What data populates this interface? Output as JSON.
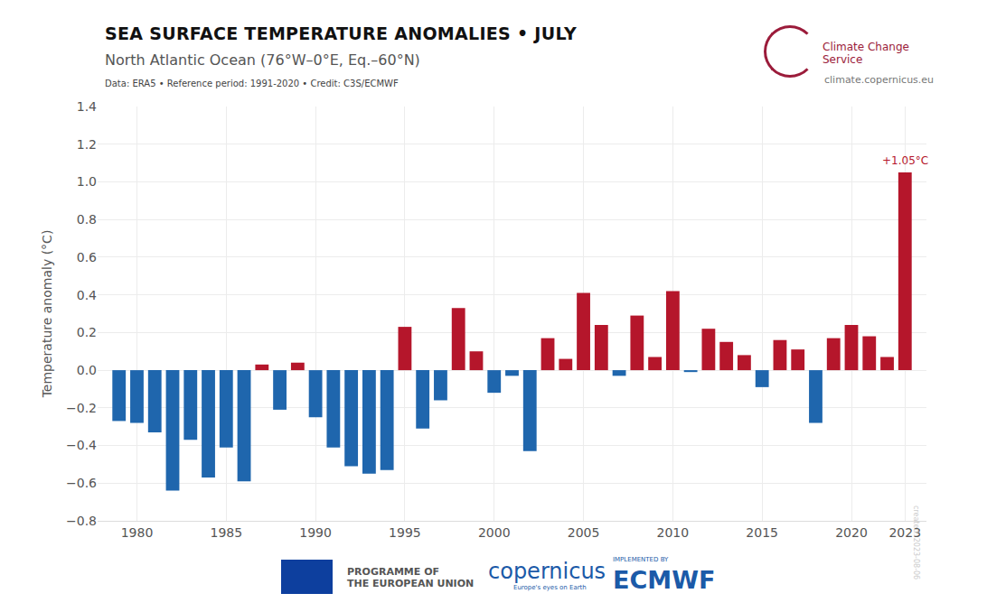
{
  "chart_data": {
    "type": "bar",
    "title": "SEA SURFACE TEMPERATURE ANOMALIES • JULY",
    "subtitle": "North Atlantic Ocean (76°W–0°E, Eq.–60°N)",
    "source": "Data: ERA5 • Reference period: 1991-2020 • Credit: C3S/ECMWF",
    "y_label": "Temperature anomaly (°C)",
    "x": [
      1979,
      1980,
      1981,
      1982,
      1983,
      1984,
      1985,
      1986,
      1987,
      1988,
      1989,
      1990,
      1991,
      1992,
      1993,
      1994,
      1995,
      1996,
      1997,
      1998,
      1999,
      2000,
      2001,
      2002,
      2003,
      2004,
      2005,
      2006,
      2007,
      2008,
      2009,
      2010,
      2011,
      2012,
      2013,
      2014,
      2015,
      2016,
      2017,
      2018,
      2019,
      2020,
      2021,
      2022,
      2023
    ],
    "values": [
      -0.27,
      -0.28,
      -0.33,
      -0.64,
      -0.37,
      -0.57,
      -0.41,
      -0.59,
      0.03,
      -0.21,
      0.04,
      -0.25,
      -0.41,
      -0.51,
      -0.55,
      -0.53,
      0.23,
      -0.31,
      -0.16,
      0.33,
      0.1,
      -0.12,
      -0.03,
      -0.43,
      0.17,
      0.06,
      0.41,
      0.24,
      -0.03,
      0.29,
      0.07,
      0.42,
      -0.01,
      0.22,
      0.15,
      0.08,
      -0.09,
      0.16,
      0.11,
      -0.28,
      0.17,
      0.24,
      0.18,
      0.07,
      1.05
    ],
    "colors": [
      "#1f66ad",
      "#1f66ad",
      "#1f66ad",
      "#1f66ad",
      "#1f66ad",
      "#1f66ad",
      "#1f66ad",
      "#1f66ad",
      "#b5162b",
      "#1f66ad",
      "#b5162b",
      "#1f66ad",
      "#1f66ad",
      "#1f66ad",
      "#1f66ad",
      "#1f66ad",
      "#b5162b",
      "#1f66ad",
      "#1f66ad",
      "#b5162b",
      "#b5162b",
      "#1f66ad",
      "#1f66ad",
      "#1f66ad",
      "#b5162b",
      "#b5162b",
      "#b5162b",
      "#b5162b",
      "#1f66ad",
      "#b5162b",
      "#b5162b",
      "#b5162b",
      "#1f66ad",
      "#b5162b",
      "#b5162b",
      "#b5162b",
      "#1f66ad",
      "#b5162b",
      "#b5162b",
      "#1f66ad",
      "#b5162b",
      "#b5162b",
      "#b5162b",
      "#b5162b",
      "#b5162b"
    ],
    "xlim": [
      1977.8,
      2024.2
    ],
    "xticks": [
      1980,
      1985,
      1990,
      1995,
      2000,
      2005,
      2010,
      2015,
      2020,
      2023
    ],
    "ylim": [
      -0.8,
      1.4
    ],
    "yticks": [
      {
        "value": -0.8,
        "label": "−0.8"
      },
      {
        "value": -0.6,
        "label": "−0.6"
      },
      {
        "value": -0.4,
        "label": "−0.4"
      },
      {
        "value": -0.2,
        "label": "−0.2"
      },
      {
        "value": 0,
        "label": "0.0"
      },
      0.2,
      0.4,
      0.6,
      0.8,
      {
        "value": 1,
        "label": "1.0"
      },
      1.2,
      1.4
    ],
    "grid": true,
    "annotations": [
      {
        "text": "+1.05°C",
        "x": 2023,
        "y": 1.05,
        "color": "#b5162b"
      }
    ]
  },
  "branding": {
    "service": "Climate Change Service",
    "url": "climate.copernicus.eu",
    "eu": [
      "PROGRAMME OF",
      "THE EUROPEAN UNION"
    ],
    "copernicus": "copernicus",
    "copernicus_tagline": "Europe's eyes on Earth",
    "implemented_by": "IMPLEMENTED BY",
    "ecmwf": "ECMWF",
    "created": "created: 2023-08-06"
  }
}
